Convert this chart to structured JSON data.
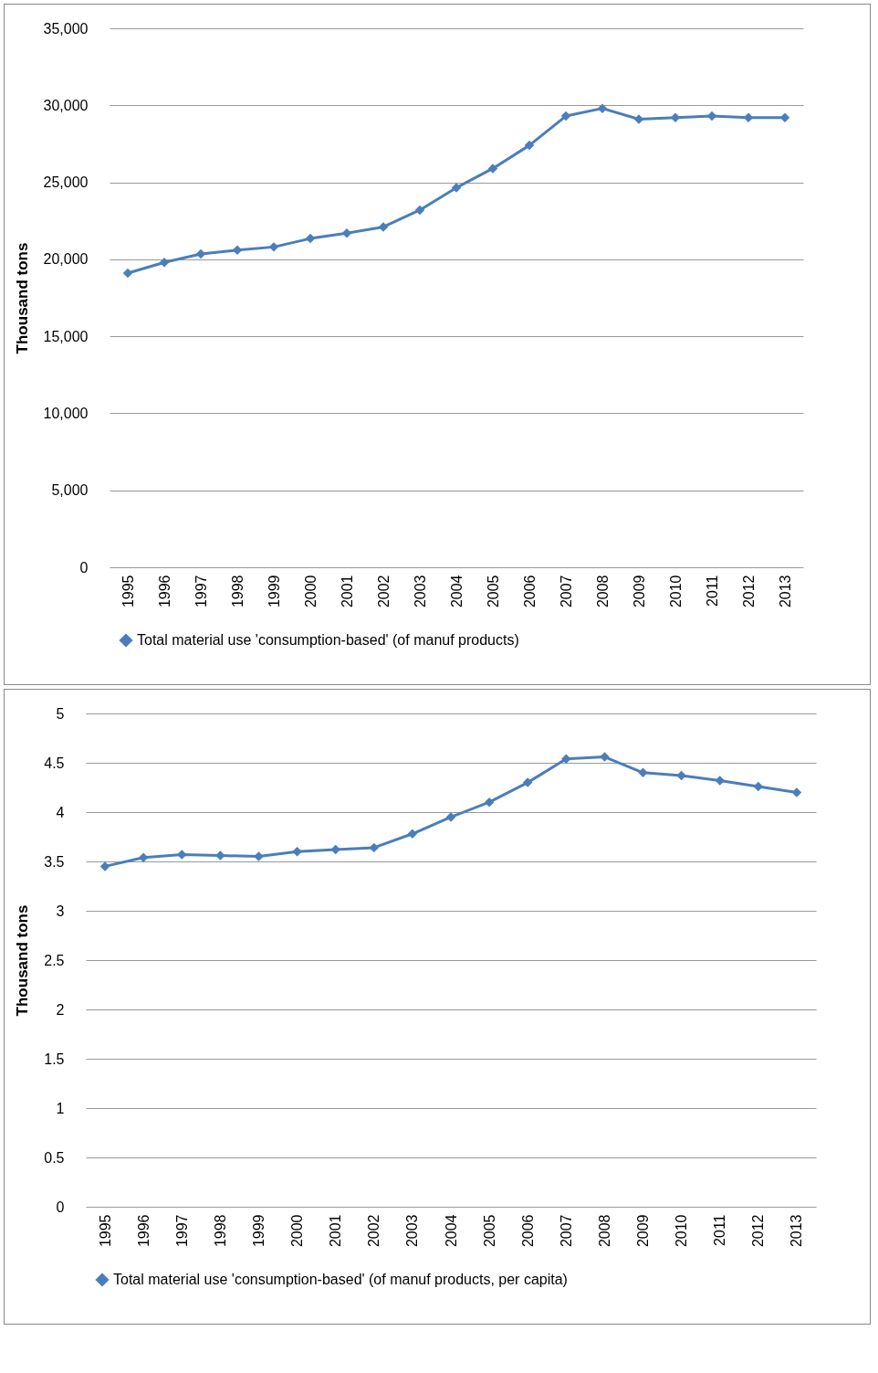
{
  "chart_data": [
    {
      "type": "line",
      "ylabel": "Thousand  tons",
      "categories": [
        "1995",
        "1996",
        "1997",
        "1998",
        "1999",
        "2000",
        "2001",
        "2002",
        "2003",
        "2004",
        "2005",
        "2006",
        "2007",
        "2008",
        "2009",
        "2010",
        "2011",
        "2012",
        "2013"
      ],
      "series": [
        {
          "name": "Total material use 'consumption-based' (of manuf products)",
          "color": "#4a7ebb",
          "values": [
            19100,
            19800,
            20350,
            20600,
            20800,
            21350,
            21700,
            22100,
            23200,
            24650,
            25900,
            27400,
            29300,
            29800,
            29100,
            29200,
            29300,
            29200,
            29200
          ]
        }
      ],
      "ylim": [
        0,
        35000
      ],
      "yticks": [
        0,
        {
          "value": 5000,
          "label": "5,000"
        },
        {
          "value": 10000,
          "label": "10,000"
        },
        {
          "value": 15000,
          "label": "15,000"
        },
        {
          "value": 20000,
          "label": "20,000"
        },
        {
          "value": 25000,
          "label": "25,000"
        },
        {
          "value": 30000,
          "label": "30,000"
        },
        {
          "value": 35000,
          "label": "35,000"
        }
      ],
      "grid": "y",
      "legend": "bottom",
      "marker": "diamond",
      "line_style": "solid"
    },
    {
      "type": "line",
      "ylabel": "Thousand tons",
      "categories": [
        "1995",
        "1996",
        "1997",
        "1998",
        "1999",
        "2000",
        "2001",
        "2002",
        "2003",
        "2004",
        "2005",
        "2006",
        "2007",
        "2008",
        "2009",
        "2010",
        "2011",
        "2012",
        "2013"
      ],
      "series": [
        {
          "name": "Total material use 'consumption-based' (of manuf products, per capita)",
          "color": "#4a7ebb",
          "values": [
            3.45,
            3.54,
            3.57,
            3.56,
            3.55,
            3.6,
            3.62,
            3.64,
            3.78,
            3.95,
            4.1,
            4.3,
            4.54,
            4.56,
            4.4,
            4.37,
            4.32,
            4.26,
            4.2
          ]
        }
      ],
      "ylim": [
        0,
        5
      ],
      "yticks": [
        0,
        0.5,
        1,
        1.5,
        2,
        2.5,
        3,
        3.5,
        4,
        4.5,
        5
      ],
      "grid": "y",
      "legend": "bottom",
      "marker": "diamond",
      "line_style": "solid"
    }
  ]
}
